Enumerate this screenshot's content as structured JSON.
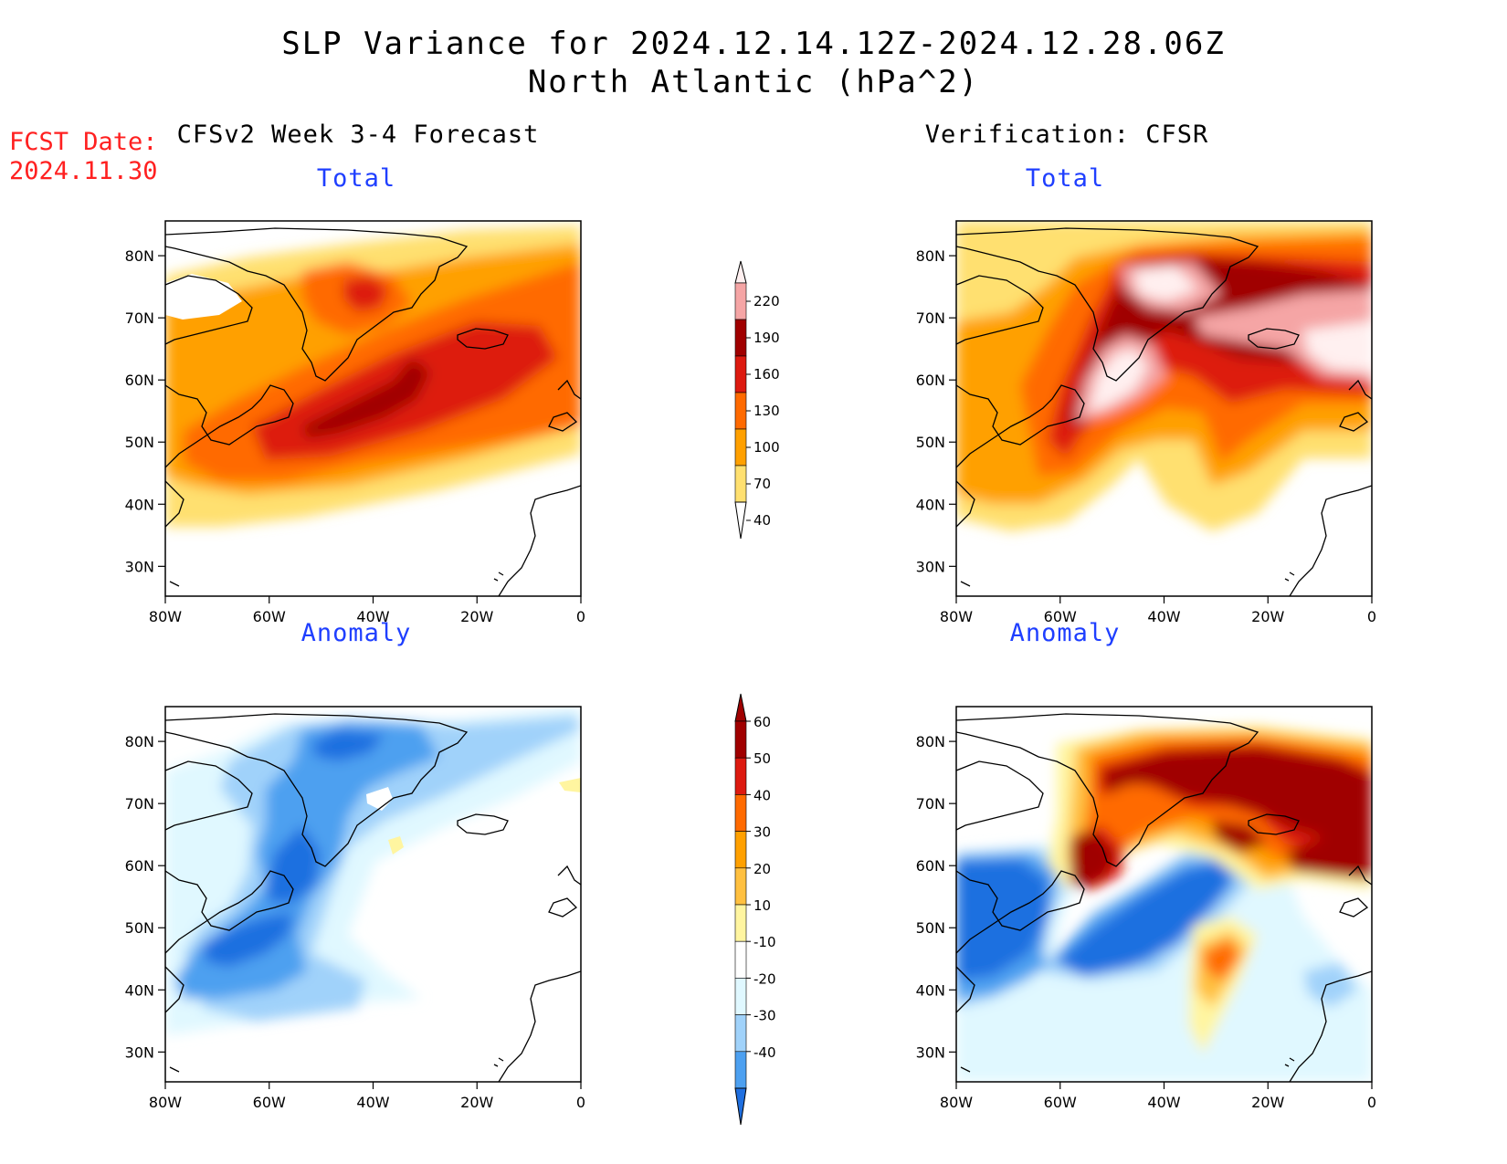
{
  "title": {
    "line1": "SLP Variance for 2024.12.14.12Z-2024.12.28.06Z",
    "line2": "North Atlantic (hPa^2)"
  },
  "fcst_date": {
    "label": "FCST Date:",
    "value": "2024.11.30"
  },
  "columns": {
    "forecast": "CFSv2 Week 3-4 Forecast",
    "verification": "Verification: CFSR"
  },
  "panels": {
    "forecast_total": "Total",
    "verification_total": "Total",
    "forecast_anomaly": "Anomaly",
    "verification_anomaly": "Anomaly"
  },
  "axes": {
    "lat_labels": [
      "80N",
      "70N",
      "60N",
      "50N",
      "40N",
      "30N"
    ],
    "lon_labels": [
      "80W",
      "60W",
      "40W",
      "20W",
      "0"
    ]
  },
  "colorbars": {
    "total": {
      "labels": [
        "220",
        "190",
        "160",
        "130",
        "100",
        "70",
        "40"
      ],
      "colors": [
        "#fff0f0",
        "#f5a5a5",
        "#a00000",
        "#dd1a10",
        "#ff6a00",
        "#ffa000",
        "#ffe070"
      ]
    },
    "anomaly": {
      "labels": [
        "60",
        "50",
        "40",
        "30",
        "20",
        "10",
        "-10",
        "-20",
        "-30",
        "-40"
      ],
      "colors": [
        "#a00000",
        "#dd1a10",
        "#ff6a00",
        "#ffa000",
        "#ffc040",
        "#fff5a0",
        "#ffffff",
        "#e0f8ff",
        "#a0d2fa",
        "#4da0f0",
        "#1f6fe0"
      ]
    }
  }
}
